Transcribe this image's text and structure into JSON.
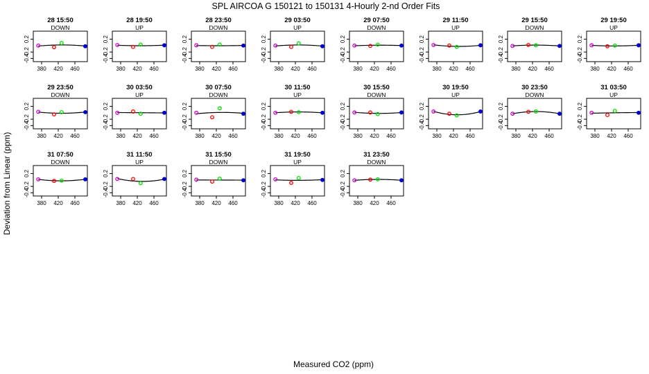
{
  "figure": {
    "title": "SPL   AIRCOA G   150121 to 150131   4-Hourly 2-nd Order Fits",
    "xlabel": "Measured CO2 (ppm)",
    "ylabel": "Deviation from Linear (ppm)"
  },
  "chart_data": {
    "type": "scatter",
    "xlim": [
      360,
      490
    ],
    "ylim": [
      -0.5,
      0.45
    ],
    "x_ticks": [
      380,
      420,
      460
    ],
    "x_tick_labels": [
      "380",
      "420",
      "460"
    ],
    "y_ticks": [
      0.2,
      -0.2,
      -0.4
    ],
    "y_tick_labels": [
      "0.2",
      "-0.2",
      "-0.4"
    ],
    "standards_x": [
      372,
      410,
      428,
      485
    ],
    "standard_colors": [
      "#cc00cc",
      "#ff0000",
      "#00dd00",
      "#0000cc"
    ],
    "grid": false,
    "panels": [
      {
        "title": "28 15:50",
        "direction": "DOWN",
        "y": [
          0.0,
          -0.05,
          0.08,
          -0.02
        ]
      },
      {
        "title": "28 19:50",
        "direction": "UP",
        "y": [
          0.02,
          -0.04,
          0.03,
          0.01
        ]
      },
      {
        "title": "28 23:50",
        "direction": "DOWN",
        "y": [
          0.01,
          -0.04,
          0.03,
          0.0
        ]
      },
      {
        "title": "29 03:50",
        "direction": "UP",
        "y": [
          0.0,
          -0.04,
          0.07,
          -0.02
        ]
      },
      {
        "title": "29 07:50",
        "direction": "DOWN",
        "y": [
          0.0,
          -0.01,
          0.03,
          0.0
        ]
      },
      {
        "title": "29 11:50",
        "direction": "UP",
        "y": [
          0.02,
          0.0,
          -0.04,
          0.01
        ]
      },
      {
        "title": "29 15:50",
        "direction": "DOWN",
        "y": [
          -0.01,
          0.02,
          0.01,
          -0.01
        ]
      },
      {
        "title": "29 19:50",
        "direction": "UP",
        "y": [
          0.01,
          -0.02,
          0.0,
          0.01
        ]
      },
      {
        "title": "29 23:50",
        "direction": "DOWN",
        "y": [
          0.03,
          -0.05,
          0.02,
          0.02
        ]
      },
      {
        "title": "30 03:50",
        "direction": "UP",
        "y": [
          0.0,
          0.04,
          -0.03,
          0.0
        ]
      },
      {
        "title": "30 07:50",
        "direction": "DOWN",
        "y": [
          0.0,
          -0.14,
          0.14,
          -0.03
        ]
      },
      {
        "title": "30 11:50",
        "direction": "UP",
        "y": [
          0.0,
          0.03,
          0.02,
          0.0
        ]
      },
      {
        "title": "30 15:50",
        "direction": "DOWN",
        "y": [
          0.01,
          0.01,
          -0.04,
          0.01
        ]
      },
      {
        "title": "30 19:50",
        "direction": "UP",
        "y": [
          0.04,
          -0.03,
          -0.08,
          0.04
        ]
      },
      {
        "title": "30 23:50",
        "direction": "DOWN",
        "y": [
          -0.03,
          0.03,
          0.04,
          -0.03
        ]
      },
      {
        "title": "31 03:50",
        "direction": "UP",
        "y": [
          0.0,
          -0.07,
          0.06,
          0.0
        ]
      },
      {
        "title": "31 07:50",
        "direction": "DOWN",
        "y": [
          0.02,
          -0.03,
          -0.02,
          0.02
        ]
      },
      {
        "title": "31 11:50",
        "direction": "UP",
        "y": [
          0.03,
          0.03,
          -0.1,
          0.03
        ]
      },
      {
        "title": "31 15:50",
        "direction": "DOWN",
        "y": [
          0.01,
          -0.05,
          0.04,
          -0.01
        ]
      },
      {
        "title": "31 19:50",
        "direction": "UP",
        "y": [
          0.02,
          -0.09,
          0.06,
          0.0
        ]
      },
      {
        "title": "31 23:50",
        "direction": "DOWN",
        "y": [
          -0.01,
          0.01,
          0.02,
          -0.01
        ]
      }
    ]
  }
}
